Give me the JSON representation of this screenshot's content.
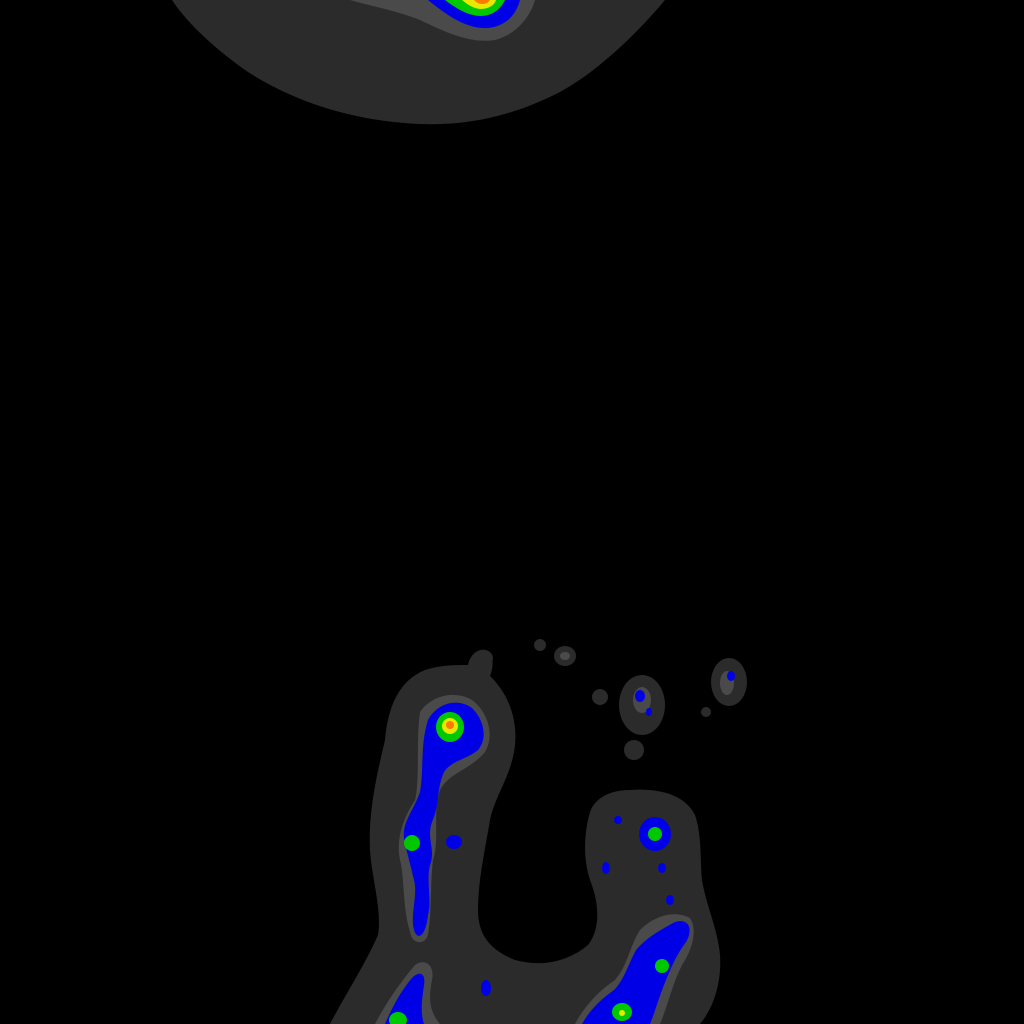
{
  "image": {
    "kind": "false-color heat / intensity map",
    "background": "#000000",
    "palette": {
      "halo_outer": "#2b2b2b",
      "halo_inner": "#4a4a4a",
      "low": "#0000e6",
      "mid": "#00c800",
      "high": "#e8e800",
      "peak": "#ff7a00"
    },
    "regions": [
      "top-disc",
      "left-ridge",
      "right-lobe",
      "satellite-blobs"
    ]
  }
}
